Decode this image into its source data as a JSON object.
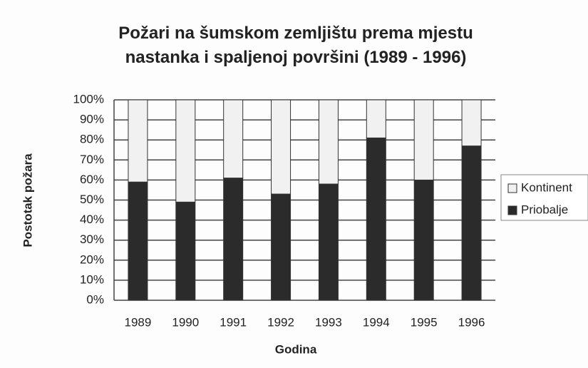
{
  "chart_data": {
    "type": "stacked_bar",
    "title": "Požari na šumskom zemljištu prema mjestu nastanka i spaljenoj površini (1989 - 1996)",
    "x_label": "Godina",
    "y_label": "Postotak požara",
    "categories": [
      "1989",
      "1990",
      "1991",
      "1992",
      "1993",
      "1994",
      "1995",
      "1996"
    ],
    "series": [
      {
        "name": "Priobalje",
        "color": "#2b2b2b",
        "values": [
          59,
          49,
          61,
          53,
          58,
          81,
          60,
          77
        ]
      },
      {
        "name": "Kontinent",
        "color": "#f1f1f1",
        "values": [
          41,
          51,
          39,
          47,
          42,
          19,
          40,
          23
        ]
      }
    ],
    "ylim": [
      0,
      100
    ],
    "yticks": [
      {
        "value": 0,
        "label": "0%"
      },
      {
        "value": 10,
        "label": "10%"
      },
      {
        "value": 20,
        "label": "20%"
      },
      {
        "value": 30,
        "label": "30%"
      },
      {
        "value": 40,
        "label": "40%"
      },
      {
        "value": 50,
        "label": "50%"
      },
      {
        "value": 60,
        "label": "60%"
      },
      {
        "value": 70,
        "label": "70%"
      },
      {
        "value": 80,
        "label": "80%"
      },
      {
        "value": 90,
        "label": "90%"
      },
      {
        "value": 100,
        "label": "100%"
      }
    ],
    "grid": true,
    "legend": "right"
  }
}
